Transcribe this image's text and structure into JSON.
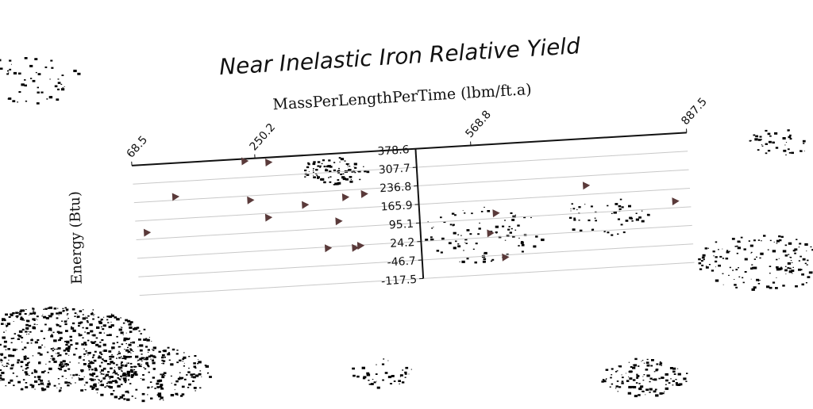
{
  "chart_data": {
    "type": "scatter",
    "title": "Near Inelastic Iron Relative Yield",
    "xlabel": "MassPerLengthPerTime (lbm/ft.a)",
    "ylabel": "Energy (Btu)",
    "x_ticks": [
      "68.5",
      "250.2",
      "568.8",
      "887.5"
    ],
    "y_ticks": [
      "378.6",
      "307.7",
      "236.8",
      "165.9",
      "95.1",
      "24.2",
      "-46.7",
      "-117.5"
    ],
    "xlim": [
      68.5,
      887.5
    ],
    "ylim": [
      -117.5,
      378.6
    ],
    "x_axis_position": "top",
    "grid": "horizontal",
    "marker": "right-pointing triangle",
    "marker_color": "#5a3a3a",
    "series": [
      {
        "points": [
          {
            "x": 85,
            "y": 120
          },
          {
            "x": 130,
            "y": 250
          },
          {
            "x": 235,
            "y": 370
          },
          {
            "x": 240,
            "y": 220
          },
          {
            "x": 265,
            "y": 150
          },
          {
            "x": 270,
            "y": 360
          },
          {
            "x": 320,
            "y": 190
          },
          {
            "x": 350,
            "y": 20
          },
          {
            "x": 368,
            "y": 120
          },
          {
            "x": 380,
            "y": 210
          },
          {
            "x": 390,
            "y": 15
          },
          {
            "x": 398,
            "y": 22
          },
          {
            "x": 408,
            "y": 218
          },
          {
            "x": 590,
            "y": 40
          },
          {
            "x": 600,
            "y": 115
          },
          {
            "x": 610,
            "y": -55
          },
          {
            "x": 735,
            "y": 200
          },
          {
            "x": 865,
            "y": 120
          }
        ]
      }
    ]
  }
}
